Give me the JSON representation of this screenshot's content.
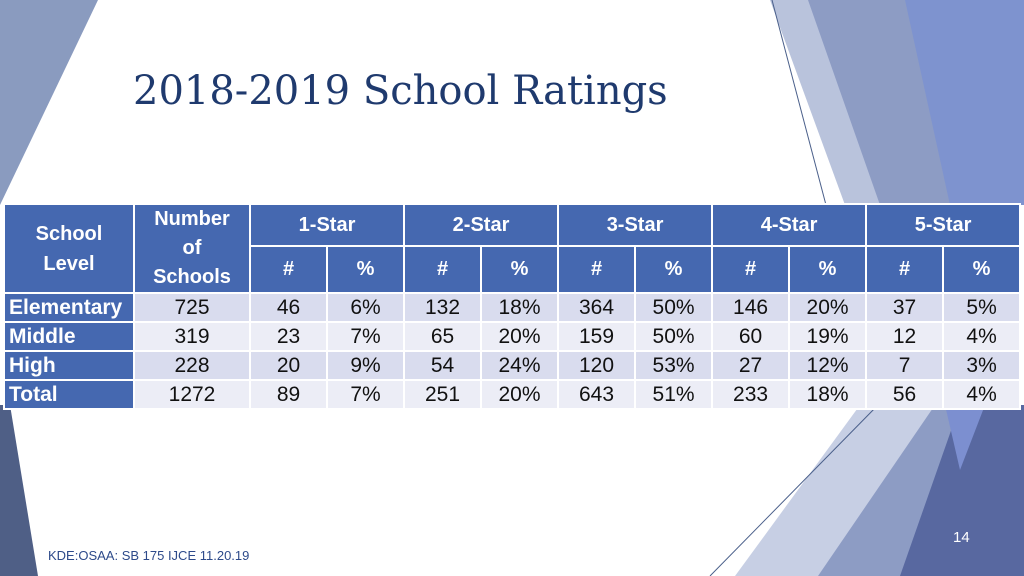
{
  "slide": {
    "title": "2018-2019 School Ratings",
    "footer": "KDE:OSAA: SB 175 IJCE 11.20.19",
    "page_number": "14"
  },
  "colors": {
    "header_blue": "#4568b0",
    "row_band_dark": "#d9dcee",
    "row_band_light": "#ecedf6",
    "title_navy": "#1f3a6e"
  },
  "table": {
    "header": {
      "school_level_line1": "School",
      "school_level_line2": "Level",
      "num_schools_line1": "Number",
      "num_schools_line2": "of",
      "num_schools_line3": "Schools",
      "stars": [
        "1-Star",
        "2-Star",
        "3-Star",
        "4-Star",
        "5-Star"
      ],
      "count_label": "#",
      "percent_label": "%"
    },
    "rows": [
      {
        "level": "Elementary",
        "schools": "725",
        "c1": "46",
        "p1": "6%",
        "c2": "132",
        "p2": "18%",
        "c3": "364",
        "p3": "50%",
        "c4": "146",
        "p4": "20%",
        "c5": "37",
        "p5": "5%"
      },
      {
        "level": "Middle",
        "schools": "319",
        "c1": "23",
        "p1": "7%",
        "c2": "65",
        "p2": "20%",
        "c3": "159",
        "p3": "50%",
        "c4": "60",
        "p4": "19%",
        "c5": "12",
        "p5": "4%"
      },
      {
        "level": "High",
        "schools": "228",
        "c1": "20",
        "p1": "9%",
        "c2": "54",
        "p2": "24%",
        "c3": "120",
        "p3": "53%",
        "c4": "27",
        "p4": "12%",
        "c5": "7",
        "p5": "3%"
      },
      {
        "level": "Total",
        "schools": "1272",
        "c1": "89",
        "p1": "7%",
        "c2": "251",
        "p2": "20%",
        "c3": "643",
        "p3": "51%",
        "c4": "233",
        "p4": "18%",
        "c5": "56",
        "p5": "4%"
      }
    ]
  }
}
